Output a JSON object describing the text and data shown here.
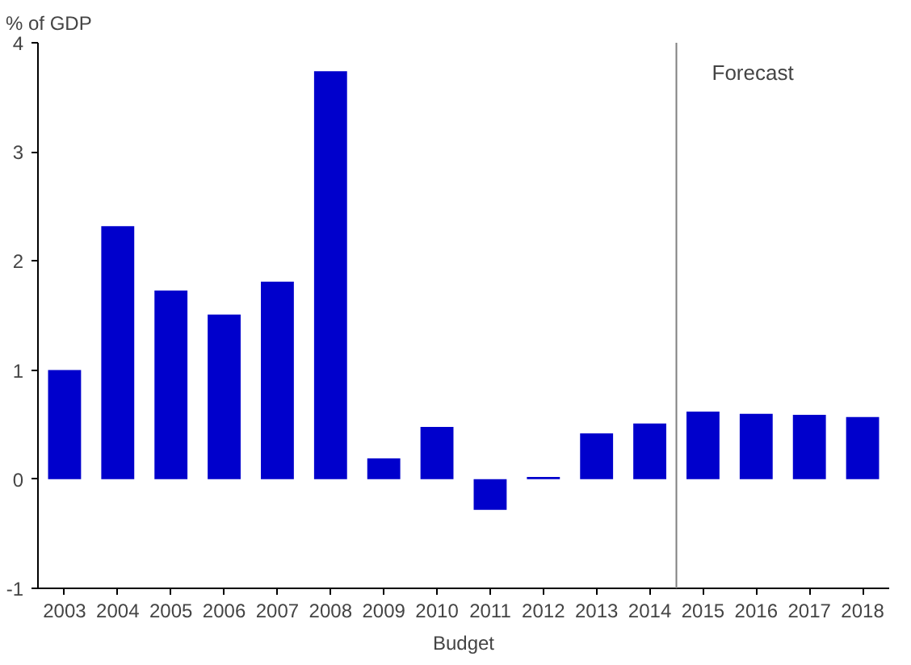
{
  "chart_data": {
    "type": "bar",
    "ylabel": "% of GDP",
    "xlabel": "Budget",
    "x": [
      2003,
      2004,
      2005,
      2006,
      2007,
      2008,
      2009,
      2010,
      2011,
      2012,
      2013,
      2014,
      2015,
      2016,
      2017,
      2018
    ],
    "values": [
      1.0,
      2.32,
      1.73,
      1.51,
      1.81,
      3.74,
      0.19,
      0.48,
      -0.28,
      0.02,
      0.42,
      0.51,
      0.62,
      0.6,
      0.59,
      0.57
    ],
    "color": "#0000cc",
    "xlim": [
      2002.5,
      2018.5
    ],
    "xticks": [
      2003,
      2004,
      2005,
      2006,
      2007,
      2008,
      2009,
      2010,
      2011,
      2012,
      2013,
      2014,
      2015,
      2016,
      2017,
      2018
    ],
    "ylim": [
      -1,
      4
    ],
    "yticks": [
      -1,
      0,
      1,
      2,
      3,
      4
    ],
    "ref_lines": [
      {
        "axis": "x",
        "value": 2014.5,
        "label": "Forecast",
        "color": "#808080"
      }
    ],
    "grid": false
  }
}
